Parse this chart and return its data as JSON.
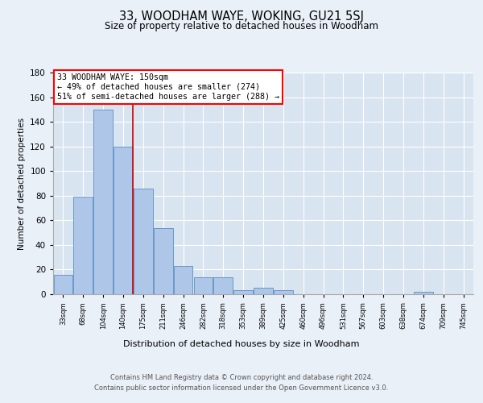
{
  "title": "33, WOODHAM WAYE, WOKING, GU21 5SJ",
  "subtitle": "Size of property relative to detached houses in Woodham",
  "xlabel": "Distribution of detached houses by size in Woodham",
  "ylabel": "Number of detached properties",
  "bar_color": "#aec6e8",
  "bar_edge_color": "#5a8fc2",
  "bins": [
    "33sqm",
    "68sqm",
    "104sqm",
    "140sqm",
    "175sqm",
    "211sqm",
    "246sqm",
    "282sqm",
    "318sqm",
    "353sqm",
    "389sqm",
    "425sqm",
    "460sqm",
    "496sqm",
    "531sqm",
    "567sqm",
    "603sqm",
    "638sqm",
    "674sqm",
    "709sqm",
    "745sqm"
  ],
  "values": [
    16,
    79,
    150,
    120,
    86,
    54,
    23,
    14,
    14,
    3,
    5,
    3,
    0,
    0,
    0,
    0,
    0,
    0,
    2,
    0,
    0
  ],
  "ylim": [
    0,
    180
  ],
  "yticks": [
    0,
    20,
    40,
    60,
    80,
    100,
    120,
    140,
    160,
    180
  ],
  "property_label": "33 WOODHAM WAYE: 150sqm",
  "annotation_line1": "← 49% of detached houses are smaller (274)",
  "annotation_line2": "51% of semi-detached houses are larger (288) →",
  "vline_color": "#cc0000",
  "vline_bin_index": 3,
  "footer_line1": "Contains HM Land Registry data © Crown copyright and database right 2024.",
  "footer_line2": "Contains public sector information licensed under the Open Government Licence v3.0.",
  "background_color": "#eaf0f8",
  "plot_bg_color": "#d8e4f0",
  "grid_color": "#ffffff"
}
